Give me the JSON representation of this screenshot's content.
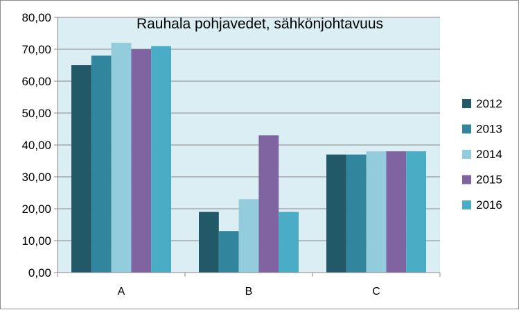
{
  "chart_data": {
    "type": "bar",
    "title": "Rauhala pohjavedet, sähkönjohtavuus",
    "categories": [
      "A",
      "B",
      "C"
    ],
    "series": [
      {
        "name": "2012",
        "color": "#215968",
        "values": [
          65,
          19,
          37
        ]
      },
      {
        "name": "2013",
        "color": "#31859c",
        "values": [
          68,
          13,
          37
        ]
      },
      {
        "name": "2014",
        "color": "#93cddd",
        "values": [
          72,
          23,
          38
        ]
      },
      {
        "name": "2015",
        "color": "#8064a2",
        "values": [
          70,
          43,
          38
        ]
      },
      {
        "name": "2016",
        "color": "#4bacc6",
        "values": [
          71,
          19,
          38
        ]
      }
    ],
    "ylim": [
      0,
      80
    ],
    "ytick_labels": [
      "0,00",
      "10,00",
      "20,00",
      "30,00",
      "40,00",
      "50,00",
      "60,00",
      "70,00",
      "80,00"
    ],
    "grid": true,
    "legend_position": "right",
    "plot_background": "#dbeef4"
  }
}
